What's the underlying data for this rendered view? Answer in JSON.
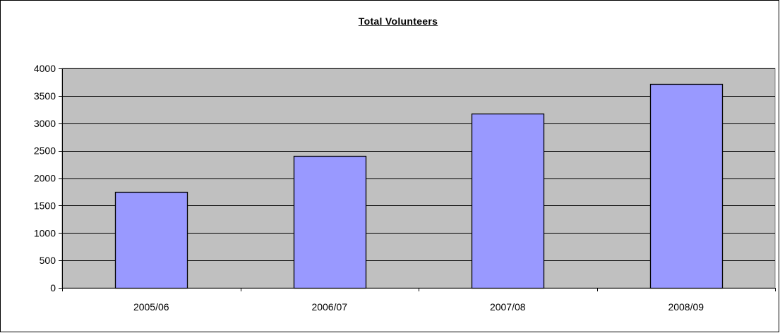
{
  "chart_data": {
    "type": "bar",
    "title": "Total Volunteers",
    "categories": [
      "2005/06",
      "2006/07",
      "2007/08",
      "2008/09"
    ],
    "values": [
      1750,
      2400,
      3180,
      3720
    ],
    "ylim": [
      0,
      4000
    ],
    "yticks": [
      0,
      500,
      1000,
      1500,
      2000,
      2500,
      3000,
      3500,
      4000
    ],
    "xlabel": "",
    "ylabel": "",
    "grid": true,
    "legend": "none",
    "colors": {
      "bar_fill": "#9999ff",
      "bar_stroke": "#000000",
      "plot_background": "#c0c0c0",
      "gridline": "#000000"
    }
  }
}
